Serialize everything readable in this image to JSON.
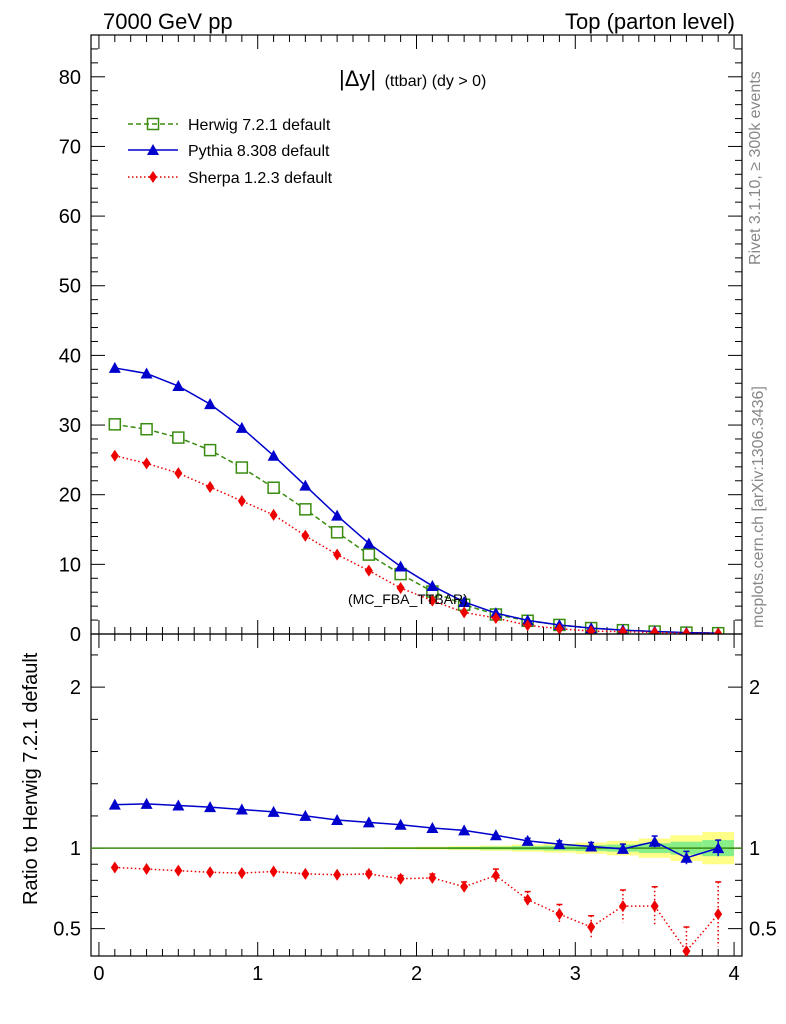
{
  "header": {
    "left": "7000 GeV pp",
    "right": "Top (parton level)"
  },
  "side_labels": {
    "rivet": "Rivet 3.1.10, ≥ 300k events",
    "mcplots": "mcplots.cern.ch [arXiv:1306.3436]"
  },
  "colors": {
    "herwig": "#3a8c10",
    "pythia": "#0000cc",
    "sherpa": "#ee0000",
    "band_inner": "#88ee88",
    "band_outer": "#ffff88"
  },
  "chart_data": [
    {
      "type": "line",
      "title": "|Δy| (ttbar) (dy > 0)",
      "title_main": "|Δy|",
      "title_rest": "(ttbar) (dy > 0)",
      "watermark": "(MC_FBA_TTBAR)",
      "xlim": [
        -0.05,
        4.05
      ],
      "ylim": [
        0,
        86
      ],
      "yticks": [
        0,
        10,
        20,
        30,
        40,
        50,
        60,
        70,
        80
      ],
      "legend_position": "top-left",
      "x": [
        0.1,
        0.3,
        0.5,
        0.7,
        0.9,
        1.1,
        1.3,
        1.5,
        1.7,
        1.9,
        2.1,
        2.3,
        2.5,
        2.7,
        2.9,
        3.1,
        3.3,
        3.5,
        3.7,
        3.9
      ],
      "series": [
        {
          "name": "Herwig 7.2.1 default",
          "marker": "open-square",
          "line": "dashed",
          "values": [
            30.1,
            29.4,
            28.2,
            26.4,
            23.9,
            21.0,
            17.9,
            14.6,
            11.4,
            8.6,
            6.1,
            4.2,
            2.8,
            1.9,
            1.3,
            0.85,
            0.55,
            0.35,
            0.2,
            0.12
          ]
        },
        {
          "name": "Pythia 8.308 default",
          "marker": "filled-triangle",
          "line": "solid",
          "values": [
            38.2,
            37.4,
            35.6,
            33.0,
            29.6,
            25.6,
            21.3,
            17.0,
            13.0,
            9.7,
            6.9,
            4.6,
            3.0,
            1.95,
            1.3,
            0.85,
            0.55,
            0.36,
            0.19,
            0.12
          ]
        },
        {
          "name": "Sherpa 1.2.3 default",
          "marker": "filled-diamond",
          "line": "dotted",
          "values": [
            25.6,
            24.5,
            23.1,
            21.1,
            19.1,
            17.1,
            14.1,
            11.4,
            9.1,
            6.6,
            4.8,
            3.1,
            2.3,
            1.25,
            0.75,
            0.42,
            0.33,
            0.22,
            0.08,
            0.07
          ]
        }
      ]
    },
    {
      "type": "line",
      "ylabel": "Ratio to Herwig 7.2.1 default",
      "xlim": [
        -0.05,
        4.05
      ],
      "ylim": [
        0.33,
        2.33
      ],
      "xticks": [
        0,
        1,
        2,
        3,
        4
      ],
      "yticks": [
        0.5,
        1,
        2
      ],
      "x": [
        0.1,
        0.3,
        0.5,
        0.7,
        0.9,
        1.1,
        1.3,
        1.5,
        1.7,
        1.9,
        2.1,
        2.3,
        2.5,
        2.7,
        2.9,
        3.1,
        3.3,
        3.5,
        3.7,
        3.9
      ],
      "reference": 1,
      "band_inner": [
        0.0,
        0.0,
        0.0,
        0.0,
        0.0,
        0.0,
        0.0,
        0.0,
        0.003,
        0.004,
        0.005,
        0.007,
        0.009,
        0.012,
        0.015,
        0.018,
        0.022,
        0.03,
        0.04,
        0.05
      ],
      "band_outer": [
        0.0,
        0.0,
        0.0,
        0.0,
        0.0,
        0.0,
        0.0,
        0.0,
        0.005,
        0.007,
        0.009,
        0.012,
        0.016,
        0.022,
        0.028,
        0.035,
        0.045,
        0.06,
        0.08,
        0.1
      ],
      "series": [
        {
          "name": "Pythia 8.308 default",
          "values": [
            1.27,
            1.275,
            1.265,
            1.255,
            1.24,
            1.225,
            1.2,
            1.175,
            1.16,
            1.145,
            1.125,
            1.11,
            1.08,
            1.045,
            1.025,
            1.01,
            0.995,
            1.04,
            0.94,
            1.0
          ],
          "errors": [
            0.005,
            0.005,
            0.005,
            0.005,
            0.005,
            0.006,
            0.006,
            0.007,
            0.008,
            0.009,
            0.01,
            0.012,
            0.014,
            0.016,
            0.02,
            0.025,
            0.03,
            0.035,
            0.04,
            0.05
          ]
        },
        {
          "name": "Sherpa 1.2.3 default",
          "values": [
            0.88,
            0.87,
            0.86,
            0.85,
            0.845,
            0.855,
            0.84,
            0.835,
            0.84,
            0.81,
            0.815,
            0.76,
            0.83,
            0.68,
            0.59,
            0.51,
            0.64,
            0.64,
            0.36,
            0.59
          ],
          "errors": [
            0.008,
            0.008,
            0.008,
            0.009,
            0.01,
            0.012,
            0.012,
            0.014,
            0.016,
            0.02,
            0.024,
            0.03,
            0.04,
            0.05,
            0.06,
            0.07,
            0.1,
            0.12,
            0.15,
            0.2
          ]
        }
      ]
    }
  ]
}
